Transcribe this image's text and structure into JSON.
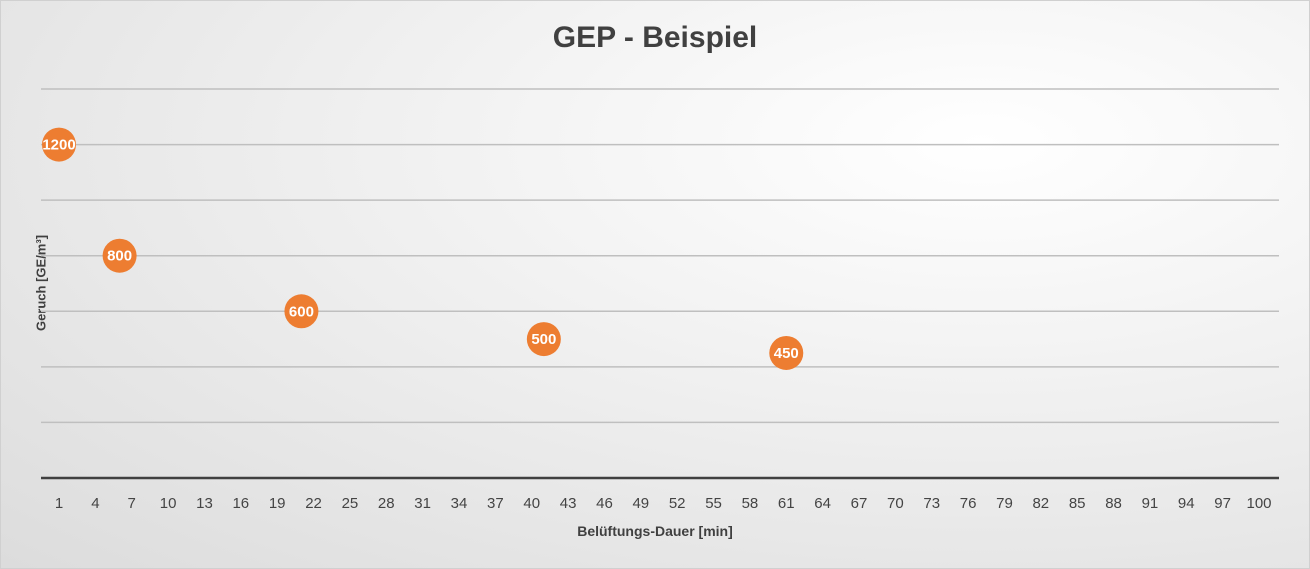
{
  "chart_data": {
    "type": "scatter",
    "title": "GEP - Beispiel",
    "xlabel": "Belüftungs-Dauer [min]",
    "ylabel": "Geruch [GE/m³]",
    "xlim": [
      1,
      100
    ],
    "ylim": [
      0,
      1400
    ],
    "x_tick_labels": [
      "1",
      "4",
      "7",
      "10",
      "13",
      "16",
      "19",
      "22",
      "25",
      "28",
      "31",
      "34",
      "37",
      "40",
      "43",
      "46",
      "49",
      "52",
      "55",
      "58",
      "61",
      "64",
      "67",
      "70",
      "73",
      "76",
      "79",
      "82",
      "85",
      "88",
      "91",
      "94",
      "97",
      "100"
    ],
    "y_gridlines": [
      200,
      400,
      600,
      800,
      1000,
      1200,
      1400
    ],
    "grid": true,
    "legend": "none",
    "series": [
      {
        "x": [
          1,
          6,
          21,
          41,
          61
        ],
        "y": [
          1200,
          800,
          600,
          500,
          450
        ],
        "labels": [
          "1200",
          "800",
          "600",
          "500",
          "450"
        ]
      }
    ],
    "colors": {
      "marker": "#ed7d31",
      "gridline": "#bfbfbf",
      "axis": "#404040"
    }
  }
}
